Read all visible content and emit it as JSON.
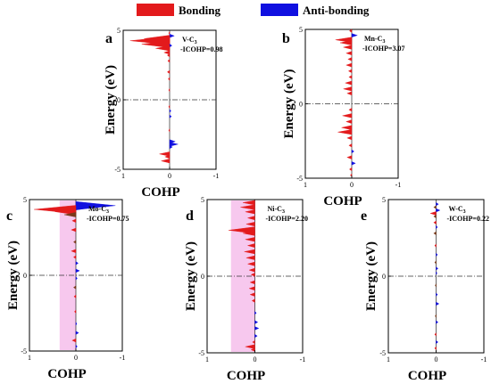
{
  "legend": {
    "bonding": {
      "label": "Bonding",
      "color": "#e31a1c"
    },
    "antibonding": {
      "label": "Anti-bonding",
      "color": "#1010e0"
    }
  },
  "colors": {
    "fill_bonding": "#e31a1c",
    "fill_antibonding": "#1010e0",
    "shade": "#f7c8ee",
    "dark_peak": "#7a3a1a",
    "zero_line": "#333333"
  },
  "chart_data": [
    {
      "type": "area",
      "panel": "a",
      "title": "V-C",
      "title_sub": "3",
      "icohp": "-ICOHP=0.98",
      "xlabel": "COHP",
      "ylabel": "Energy (eV)",
      "xlim": [
        1,
        -1
      ],
      "ylim": [
        -5,
        5
      ],
      "xticks": [
        "1",
        "0",
        "-1"
      ],
      "yticks": [
        "5",
        "0",
        "-5"
      ],
      "shaded": false,
      "dark": false,
      "peaks": [
        [
          4.8,
          0.02
        ],
        [
          4.6,
          -0.1
        ],
        [
          4.4,
          0.55
        ],
        [
          4.25,
          0.85
        ],
        [
          4.1,
          0.2
        ],
        [
          4.0,
          0.6
        ],
        [
          3.9,
          -0.05
        ],
        [
          3.7,
          0.3
        ],
        [
          3.4,
          0.12
        ],
        [
          3.2,
          0.05
        ],
        [
          2.8,
          0.04
        ],
        [
          2.0,
          0.05
        ],
        [
          1.5,
          0.03
        ],
        [
          0.7,
          0.02
        ],
        [
          -0.5,
          0.02
        ],
        [
          -0.8,
          -0.03
        ],
        [
          -1.2,
          -0.04
        ],
        [
          -2.2,
          0.02
        ],
        [
          -3.0,
          -0.12
        ],
        [
          -3.2,
          -0.18
        ],
        [
          -3.4,
          -0.06
        ],
        [
          -3.9,
          0.22
        ],
        [
          -4.1,
          0.1
        ],
        [
          -4.4,
          0.18
        ]
      ]
    },
    {
      "type": "area",
      "panel": "b",
      "title": "Mn-C",
      "title_sub": "3",
      "icohp": "-ICOHP=3.07",
      "xlabel": "COHP",
      "ylabel": "Energy (eV)",
      "xlim": [
        1,
        -1
      ],
      "ylim": [
        -5,
        5
      ],
      "xticks": [
        "1",
        "0",
        "-1"
      ],
      "yticks": [
        "5",
        "0",
        "-5"
      ],
      "shaded": false,
      "dark": false,
      "peaks": [
        [
          4.9,
          0.05
        ],
        [
          4.6,
          -0.12
        ],
        [
          4.3,
          0.35
        ],
        [
          4.1,
          0.25
        ],
        [
          3.8,
          0.18
        ],
        [
          3.4,
          0.12
        ],
        [
          3.0,
          0.08
        ],
        [
          2.6,
          0.12
        ],
        [
          2.2,
          0.07
        ],
        [
          1.8,
          0.06
        ],
        [
          1.4,
          0.14
        ],
        [
          1.0,
          0.18
        ],
        [
          0.7,
          0.1
        ],
        [
          -0.4,
          0.06
        ],
        [
          -0.8,
          0.2
        ],
        [
          -1.2,
          0.12
        ],
        [
          -1.6,
          0.22
        ],
        [
          -1.9,
          0.3
        ],
        [
          -2.3,
          0.1
        ],
        [
          -2.8,
          0.06
        ],
        [
          -3.2,
          -0.05
        ],
        [
          -3.6,
          0.1
        ],
        [
          -4.0,
          -0.08
        ],
        [
          -4.4,
          0.05
        ],
        [
          -4.8,
          0.03
        ]
      ]
    },
    {
      "type": "area",
      "panel": "c",
      "title": "Mo-C",
      "title_sub": "3",
      "icohp": "-ICOHP=0.75",
      "xlabel": "COHP",
      "ylabel": "Energy (eV)",
      "xlim": [
        1,
        -1
      ],
      "ylim": [
        -5,
        5
      ],
      "xticks": [
        "1",
        "0",
        "-1"
      ],
      "yticks": [
        "5",
        "0",
        "-5"
      ],
      "shaded": true,
      "dark": true,
      "peaks": [
        [
          4.6,
          -0.85
        ],
        [
          4.5,
          -0.4
        ],
        [
          4.35,
          0.9
        ],
        [
          4.2,
          0.45
        ],
        [
          4.0,
          0.25
        ],
        [
          3.6,
          0.08
        ],
        [
          3.0,
          0.1
        ],
        [
          2.2,
          0.05
        ],
        [
          1.6,
          0.1
        ],
        [
          1.2,
          0.05
        ],
        [
          0.8,
          -0.05
        ],
        [
          0.3,
          -0.08
        ],
        [
          -0.2,
          -0.03
        ],
        [
          -0.8,
          0.05
        ],
        [
          -1.4,
          0.04
        ],
        [
          -2.4,
          0.03
        ],
        [
          -3.2,
          -0.02
        ],
        [
          -3.8,
          -0.06
        ],
        [
          -4.3,
          0.08
        ],
        [
          -4.7,
          -0.03
        ]
      ]
    },
    {
      "type": "area",
      "panel": "d",
      "title": "Ni-C",
      "title_sub": "3",
      "icohp": "-ICOHP=2.20",
      "xlabel": "COHP",
      "ylabel": "Energy (eV)",
      "xlim": [
        1,
        -1
      ],
      "ylim": [
        -5,
        5
      ],
      "xticks": [
        "1",
        "0",
        "-1"
      ],
      "yticks": [
        "5",
        "0",
        "-5"
      ],
      "shaded": true,
      "dark": false,
      "peaks": [
        [
          4.8,
          0.25
        ],
        [
          4.5,
          0.3
        ],
        [
          4.2,
          0.2
        ],
        [
          3.8,
          0.15
        ],
        [
          3.4,
          0.18
        ],
        [
          3.0,
          0.55
        ],
        [
          2.8,
          0.25
        ],
        [
          2.4,
          0.2
        ],
        [
          2.0,
          0.15
        ],
        [
          1.6,
          0.22
        ],
        [
          1.2,
          0.18
        ],
        [
          0.8,
          0.15
        ],
        [
          0.4,
          0.12
        ],
        [
          0.1,
          0.08
        ],
        [
          -0.4,
          0.1
        ],
        [
          -0.8,
          0.12
        ],
        [
          -1.2,
          0.1
        ],
        [
          -1.6,
          0.06
        ],
        [
          -2.4,
          -0.03
        ],
        [
          -3.0,
          -0.06
        ],
        [
          -3.4,
          -0.08
        ],
        [
          -3.9,
          -0.05
        ],
        [
          -4.3,
          0.05
        ],
        [
          -4.6,
          0.2
        ],
        [
          -4.8,
          0.08
        ]
      ]
    },
    {
      "type": "area",
      "panel": "e",
      "title": "W-C",
      "title_sub": "3",
      "icohp": "-ICOHP=0.22",
      "xlabel": "COHP",
      "ylabel": "Energy (eV)",
      "xlim": [
        1,
        -1
      ],
      "ylim": [
        -5,
        5
      ],
      "xticks": [
        "1",
        "0",
        "-1"
      ],
      "yticks": [
        "5",
        "0",
        "-5"
      ],
      "shaded": false,
      "dark": true,
      "peaks": [
        [
          4.7,
          -0.05
        ],
        [
          4.5,
          0.05
        ],
        [
          4.3,
          -0.08
        ],
        [
          4.1,
          0.12
        ],
        [
          3.9,
          0.05
        ],
        [
          3.5,
          0.05
        ],
        [
          3.2,
          -0.03
        ],
        [
          2.8,
          0.05
        ],
        [
          2.0,
          0.03
        ],
        [
          1.4,
          -0.03
        ],
        [
          0.9,
          0.03
        ],
        [
          0.5,
          -0.04
        ],
        [
          0.2,
          -0.02
        ],
        [
          -0.6,
          0.02
        ],
        [
          -1.2,
          -0.03
        ],
        [
          -1.8,
          -0.06
        ],
        [
          -2.6,
          0.02
        ],
        [
          -3.0,
          -0.04
        ],
        [
          -3.8,
          0.03
        ],
        [
          -4.3,
          -0.04
        ],
        [
          -4.7,
          0.03
        ]
      ]
    }
  ]
}
